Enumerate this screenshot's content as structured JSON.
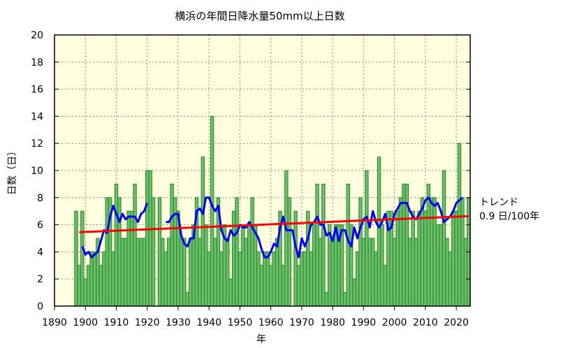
{
  "chart_data": {
    "type": "bar",
    "title": "横浜の年間日降水量50mm以上日数",
    "xlabel": "年",
    "ylabel": "日数（日）",
    "xlim": [
      1890,
      2024.5
    ],
    "ylim": [
      0,
      20
    ],
    "xticks": [
      1890,
      1900,
      1910,
      1920,
      1930,
      1940,
      1950,
      1960,
      1970,
      1980,
      1990,
      2000,
      2010,
      2020
    ],
    "yticks": [
      0,
      2,
      4,
      6,
      8,
      10,
      12,
      14,
      16,
      18,
      20
    ],
    "grid": true,
    "start_year": 1897,
    "values": [
      7,
      3,
      7,
      2,
      3,
      4,
      4,
      5,
      3,
      4,
      8,
      8,
      4,
      9,
      8,
      5,
      5,
      7,
      7,
      9,
      5,
      5,
      5,
      10,
      10,
      8,
      null,
      8,
      5,
      4,
      5,
      9,
      8,
      7,
      5,
      5,
      1,
      5,
      6,
      8,
      5,
      11,
      6,
      4,
      14,
      5,
      8,
      4,
      6,
      5,
      2,
      7,
      8,
      4,
      6,
      5,
      6,
      8,
      6,
      4,
      3,
      4,
      4,
      3,
      4,
      5,
      7,
      3,
      10,
      8,
      0,
      7,
      3,
      4,
      4,
      7,
      4,
      6,
      9,
      5,
      9,
      1,
      6,
      5,
      6,
      6,
      6,
      1,
      9,
      6,
      2,
      4,
      8,
      5,
      10,
      5,
      5,
      4,
      11,
      6,
      3,
      7,
      7,
      5,
      7,
      8,
      9,
      9,
      5,
      7,
      5,
      7,
      8,
      7,
      9,
      8,
      8,
      6,
      6,
      10,
      5,
      4,
      7,
      7,
      12,
      8,
      5,
      8
    ],
    "series": [
      {
        "kind": "bar",
        "color": "#6dbd6d",
        "edge": "#1f8a1f"
      },
      {
        "kind": "moving-average-5yr",
        "color": "#0000ff"
      },
      {
        "kind": "trend",
        "color": "#ff0000"
      }
    ],
    "trend": {
      "label": "トレンド",
      "value_label": "0.9 日/100年",
      "per_100yr": 0.9
    },
    "background": "#ffffe0"
  }
}
